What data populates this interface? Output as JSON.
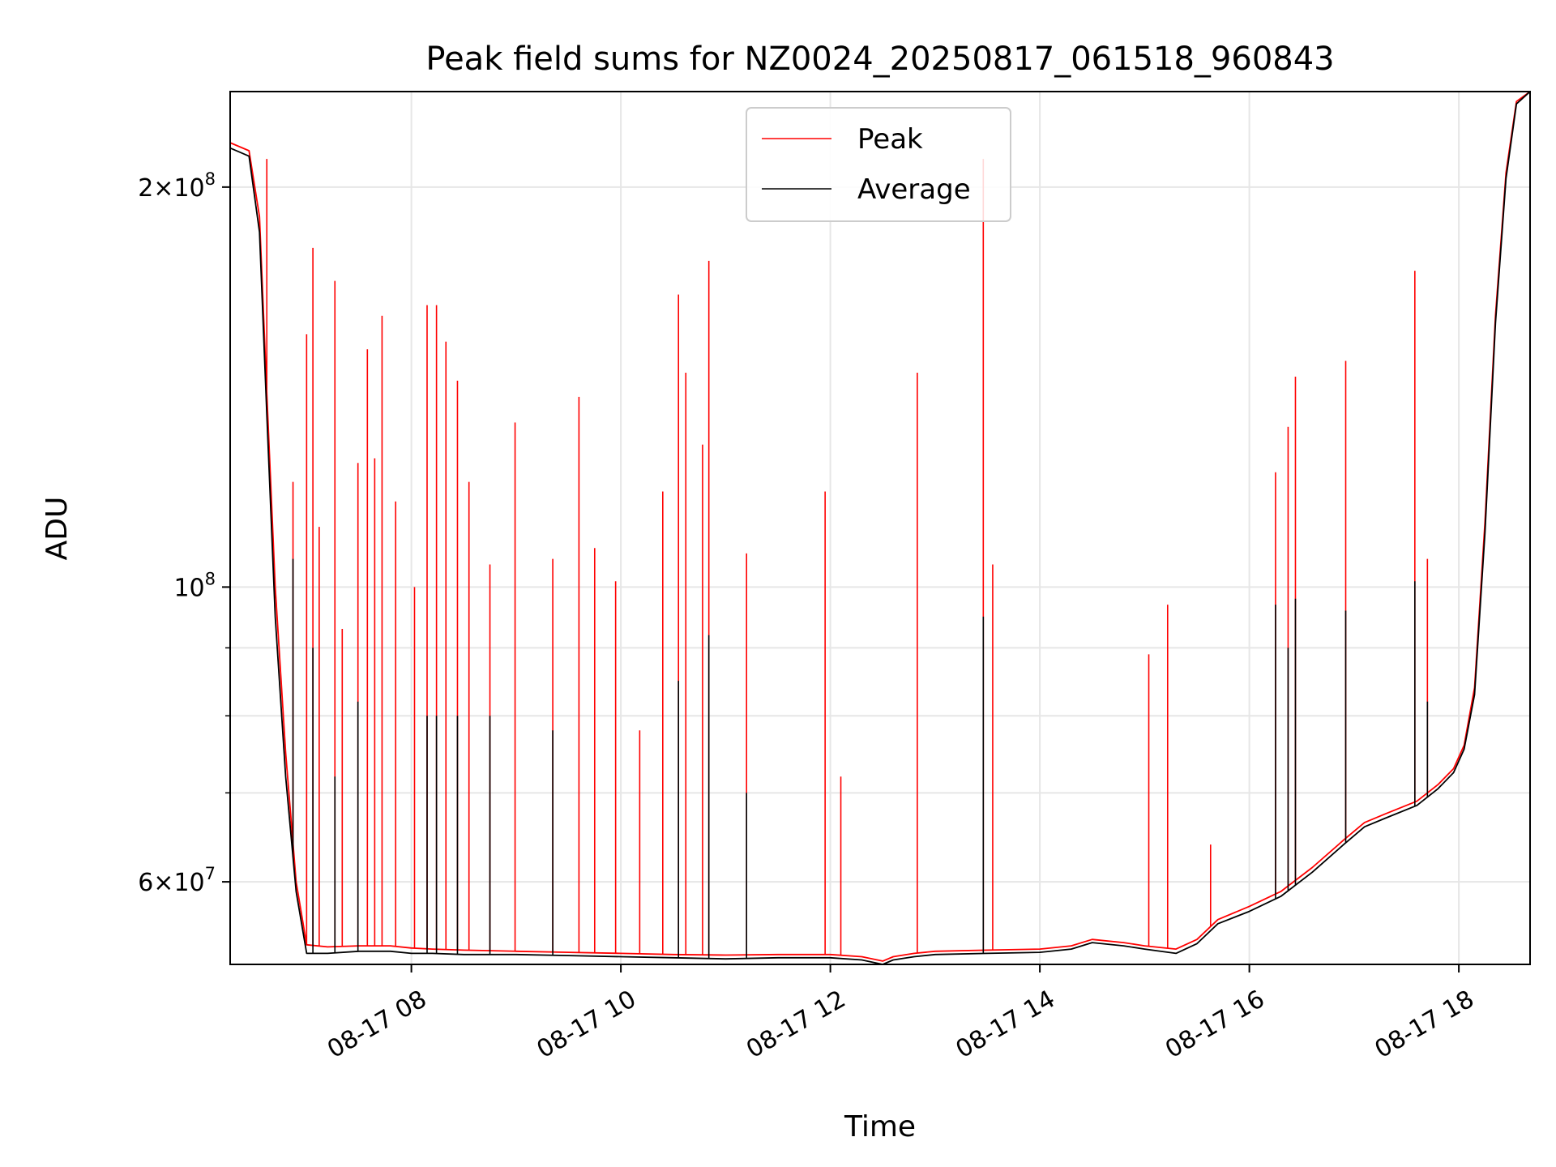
{
  "chart_data": {
    "type": "line",
    "title": "Peak field sums for NZ0024_20250817_061518_960843",
    "xlabel": "Time",
    "ylabel": "ADU",
    "x_unit": "hours of 2025-08-17",
    "xlim": [
      6.27,
      18.68
    ],
    "ylim": [
      52000000,
      236000000
    ],
    "yscale": "log",
    "grid": true,
    "legend_position": "upper center",
    "x_ticks": [
      {
        "value": 8,
        "label": "08-17 08"
      },
      {
        "value": 10,
        "label": "08-17 10"
      },
      {
        "value": 12,
        "label": "08-17 12"
      },
      {
        "value": 14,
        "label": "08-17 14"
      },
      {
        "value": 16,
        "label": "08-17 16"
      },
      {
        "value": 18,
        "label": "08-17 18"
      }
    ],
    "y_ticks": [
      {
        "value": 60000000,
        "mantissa": "6",
        "times": "×",
        "base": "10",
        "exp": "7"
      },
      {
        "value": 100000000,
        "mantissa": "",
        "times": "",
        "base": "10",
        "exp": "8"
      },
      {
        "value": 200000000,
        "mantissa": "2",
        "times": "×",
        "base": "10",
        "exp": "8"
      }
    ],
    "series": [
      {
        "name": "Peak",
        "color": "#ff0000",
        "x": [
          6.27,
          6.45,
          6.55,
          6.62,
          6.7,
          6.8,
          6.9,
          7.0,
          7.2,
          7.5,
          7.8,
          8.0,
          8.2,
          8.5,
          9.0,
          9.5,
          10.0,
          10.5,
          11.0,
          11.5,
          12.0,
          12.3,
          12.5,
          12.6,
          12.8,
          13.0,
          13.5,
          14.0,
          14.3,
          14.5,
          14.8,
          15.0,
          15.3,
          15.5,
          15.7,
          16.0,
          16.3,
          16.6,
          16.9,
          17.1,
          17.3,
          17.6,
          17.8,
          17.95,
          18.05,
          18.15,
          18.25,
          18.35,
          18.45,
          18.55,
          18.68
        ],
        "y": [
          216000000,
          213000000,
          190000000,
          140000000,
          100000000,
          75000000,
          60000000,
          53800000,
          53600000,
          53700000,
          53700000,
          53500000,
          53400000,
          53300000,
          53200000,
          53100000,
          53000000,
          52900000,
          52850000,
          52900000,
          52900000,
          52700000,
          52300000,
          52700000,
          53000000,
          53200000,
          53300000,
          53400000,
          53700000,
          54300000,
          54000000,
          53700000,
          53400000,
          54300000,
          56200000,
          57500000,
          59000000,
          61500000,
          64500000,
          66500000,
          67500000,
          69000000,
          71000000,
          73000000,
          76000000,
          84000000,
          112000000,
          160000000,
          205000000,
          232000000,
          236000000
        ],
        "spikes": [
          {
            "x": 6.62,
            "y": 210000000
          },
          {
            "x": 6.87,
            "y": 120000000
          },
          {
            "x": 7.0,
            "y": 155000000
          },
          {
            "x": 7.06,
            "y": 180000000
          },
          {
            "x": 7.12,
            "y": 111000000
          },
          {
            "x": 7.27,
            "y": 170000000
          },
          {
            "x": 7.34,
            "y": 93000000
          },
          {
            "x": 7.49,
            "y": 124000000
          },
          {
            "x": 7.58,
            "y": 151000000
          },
          {
            "x": 7.65,
            "y": 125000000
          },
          {
            "x": 7.72,
            "y": 160000000
          },
          {
            "x": 7.85,
            "y": 116000000
          },
          {
            "x": 8.03,
            "y": 100000000
          },
          {
            "x": 8.15,
            "y": 163000000
          },
          {
            "x": 8.24,
            "y": 163000000
          },
          {
            "x": 8.33,
            "y": 153000000
          },
          {
            "x": 8.44,
            "y": 143000000
          },
          {
            "x": 8.55,
            "y": 120000000
          },
          {
            "x": 8.75,
            "y": 104000000
          },
          {
            "x": 8.99,
            "y": 133000000
          },
          {
            "x": 9.35,
            "y": 105000000
          },
          {
            "x": 9.6,
            "y": 139000000
          },
          {
            "x": 9.75,
            "y": 107000000
          },
          {
            "x": 9.95,
            "y": 101000000
          },
          {
            "x": 10.18,
            "y": 78000000
          },
          {
            "x": 10.4,
            "y": 118000000
          },
          {
            "x": 10.55,
            "y": 166000000
          },
          {
            "x": 10.62,
            "y": 145000000
          },
          {
            "x": 10.78,
            "y": 128000000
          },
          {
            "x": 10.84,
            "y": 176000000
          },
          {
            "x": 11.2,
            "y": 106000000
          },
          {
            "x": 11.95,
            "y": 118000000
          },
          {
            "x": 12.1,
            "y": 72000000
          },
          {
            "x": 12.83,
            "y": 145000000
          },
          {
            "x": 13.46,
            "y": 210000000
          },
          {
            "x": 13.55,
            "y": 104000000
          },
          {
            "x": 15.04,
            "y": 89000000
          },
          {
            "x": 15.22,
            "y": 97000000
          },
          {
            "x": 15.63,
            "y": 64000000
          },
          {
            "x": 16.25,
            "y": 122000000
          },
          {
            "x": 16.37,
            "y": 132000000
          },
          {
            "x": 16.44,
            "y": 144000000
          },
          {
            "x": 16.92,
            "y": 148000000
          },
          {
            "x": 17.58,
            "y": 173000000
          },
          {
            "x": 17.7,
            "y": 105000000
          }
        ]
      },
      {
        "name": "Average",
        "color": "#000000",
        "x": [
          6.27,
          6.45,
          6.55,
          6.62,
          6.7,
          6.8,
          6.9,
          7.0,
          7.2,
          7.5,
          7.8,
          8.0,
          8.2,
          8.5,
          9.0,
          9.5,
          10.0,
          10.5,
          11.0,
          11.5,
          12.0,
          12.3,
          12.5,
          12.6,
          12.8,
          13.0,
          13.5,
          14.0,
          14.3,
          14.5,
          14.8,
          15.0,
          15.3,
          15.5,
          15.7,
          16.0,
          16.3,
          16.6,
          16.9,
          17.1,
          17.3,
          17.6,
          17.8,
          17.95,
          18.05,
          18.15,
          18.25,
          18.35,
          18.45,
          18.55,
          18.68
        ],
        "y": [
          214000000,
          211000000,
          185000000,
          135000000,
          95000000,
          72000000,
          59000000,
          53000000,
          53000000,
          53200000,
          53200000,
          53000000,
          53000000,
          52900000,
          52900000,
          52800000,
          52700000,
          52600000,
          52500000,
          52600000,
          52600000,
          52400000,
          52000000,
          52400000,
          52700000,
          52900000,
          53000000,
          53100000,
          53400000,
          54000000,
          53700000,
          53400000,
          53000000,
          53900000,
          55800000,
          57000000,
          58500000,
          61000000,
          64000000,
          66000000,
          67000000,
          68500000,
          70500000,
          72500000,
          75500000,
          83000000,
          110000000,
          158000000,
          203000000,
          231000000,
          236000000
        ],
        "spikes": [
          {
            "x": 6.87,
            "y": 105000000
          },
          {
            "x": 7.06,
            "y": 90000000
          },
          {
            "x": 7.27,
            "y": 72000000
          },
          {
            "x": 7.49,
            "y": 82000000
          },
          {
            "x": 8.15,
            "y": 80000000
          },
          {
            "x": 8.24,
            "y": 80000000
          },
          {
            "x": 8.44,
            "y": 80000000
          },
          {
            "x": 8.75,
            "y": 80000000
          },
          {
            "x": 9.35,
            "y": 78000000
          },
          {
            "x": 10.55,
            "y": 85000000
          },
          {
            "x": 10.84,
            "y": 92000000
          },
          {
            "x": 11.2,
            "y": 70000000
          },
          {
            "x": 13.46,
            "y": 95000000
          },
          {
            "x": 16.25,
            "y": 97000000
          },
          {
            "x": 16.37,
            "y": 90000000
          },
          {
            "x": 16.44,
            "y": 98000000
          },
          {
            "x": 16.92,
            "y": 96000000
          },
          {
            "x": 17.58,
            "y": 101000000
          },
          {
            "x": 17.7,
            "y": 82000000
          }
        ]
      }
    ]
  }
}
